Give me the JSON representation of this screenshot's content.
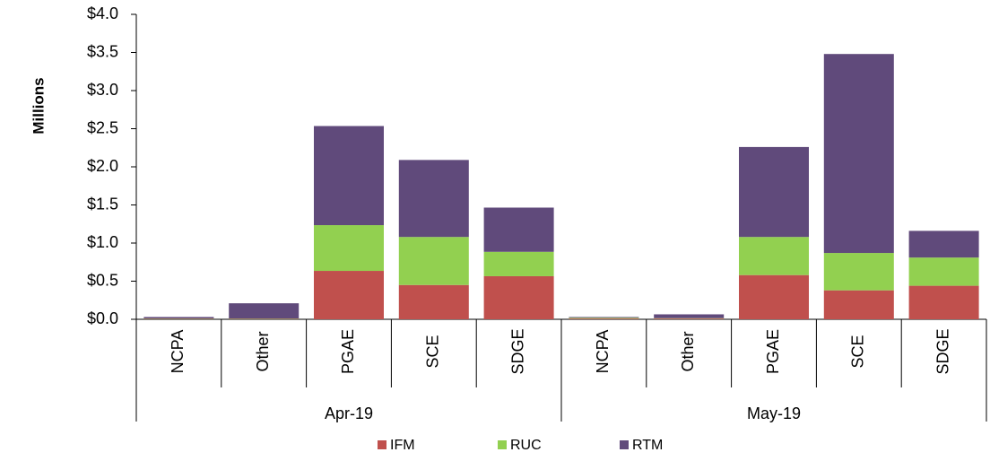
{
  "chart_data": {
    "type": "stacked-bar",
    "y_label": "Millions",
    "groups": [
      {
        "label": "Apr-19",
        "categories": [
          "NCPA",
          "Other",
          "PGAE",
          "SCE",
          "SDGE"
        ]
      },
      {
        "label": "May-19",
        "categories": [
          "NCPA",
          "Other",
          "PGAE",
          "SCE",
          "SDGE"
        ]
      }
    ],
    "series": [
      {
        "name": "IFM",
        "color": "#c0504d",
        "values": [
          0.005,
          0.005,
          0.635,
          0.45,
          0.565,
          0.01,
          0.01,
          0.58,
          0.38,
          0.44
        ]
      },
      {
        "name": "RUC",
        "color": "#92d050",
        "values": [
          0.005,
          0.005,
          0.6,
          0.63,
          0.32,
          0.01,
          0.005,
          0.5,
          0.49,
          0.37
        ]
      },
      {
        "name": "RTM",
        "color": "#604a7b",
        "values": [
          0.02,
          0.2,
          1.3,
          1.01,
          0.58,
          0.01,
          0.05,
          1.18,
          2.61,
          0.35
        ]
      }
    ],
    "ylim": [
      0,
      4
    ],
    "yticks": [
      {
        "value": 0,
        "label": "$0.0"
      },
      {
        "value": 0.5,
        "label": "$0.5"
      },
      {
        "value": 1,
        "label": "$1.0"
      },
      {
        "value": 1.5,
        "label": "$1.5"
      },
      {
        "value": 2,
        "label": "$2.0"
      },
      {
        "value": 2.5,
        "label": "$2.5"
      },
      {
        "value": 3,
        "label": "$3.0"
      },
      {
        "value": 3.5,
        "label": "$3.5"
      },
      {
        "value": 4,
        "label": "$4.0"
      }
    ],
    "legend": "bottom"
  }
}
